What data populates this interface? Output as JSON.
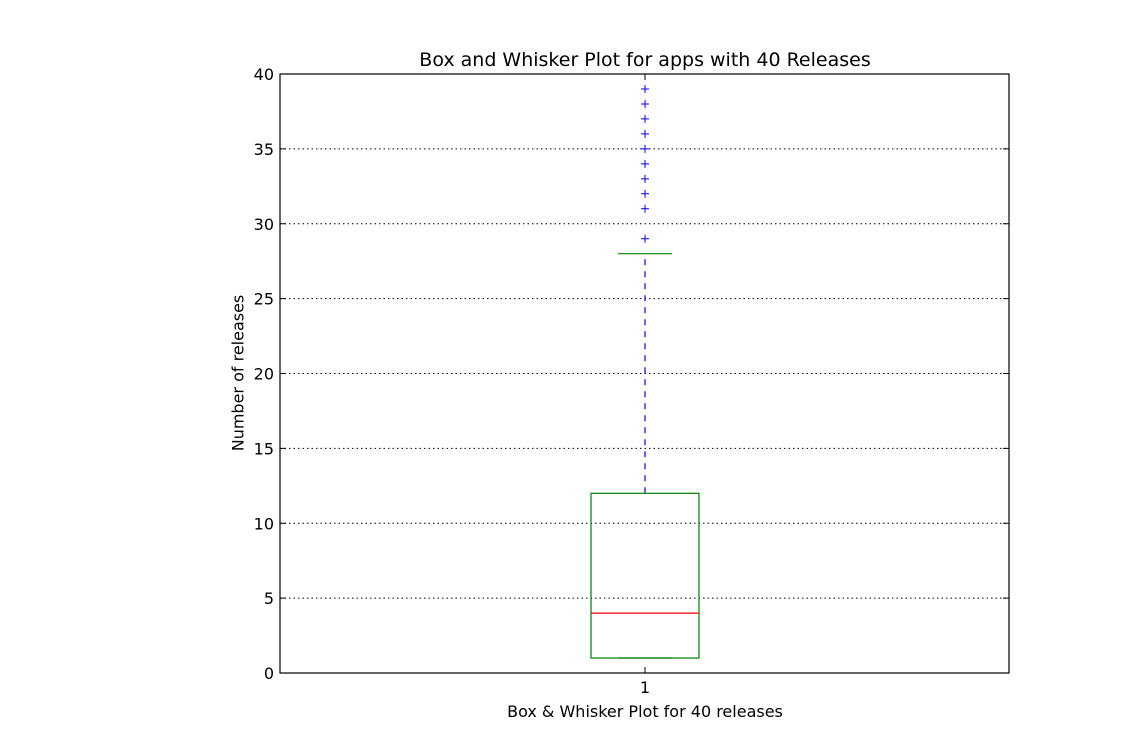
{
  "chart_data": {
    "type": "box",
    "title": "Box and Whisker Plot for apps with 40 Releases",
    "xlabel": "Box & Whisker Plot for 40 releases",
    "ylabel": "Number of releases",
    "ylim": [
      0,
      40
    ],
    "yticks": [
      "0",
      "5",
      "10",
      "15",
      "20",
      "25",
      "30",
      "35",
      "40"
    ],
    "categories": [
      "1"
    ],
    "grid": "horizontal dotted",
    "boxes": [
      {
        "category": "1",
        "whisker_low": 1,
        "q1": 1,
        "median": 4,
        "q3": 12,
        "whisker_high": 28,
        "outliers": [
          29,
          31,
          32,
          33,
          34,
          35,
          36,
          37,
          38,
          39
        ]
      }
    ],
    "colors": {
      "box": "#008000",
      "median": "#ff0000",
      "whisker": "#0000ff",
      "outlier": "#0000ff",
      "grid": "#000000"
    }
  }
}
